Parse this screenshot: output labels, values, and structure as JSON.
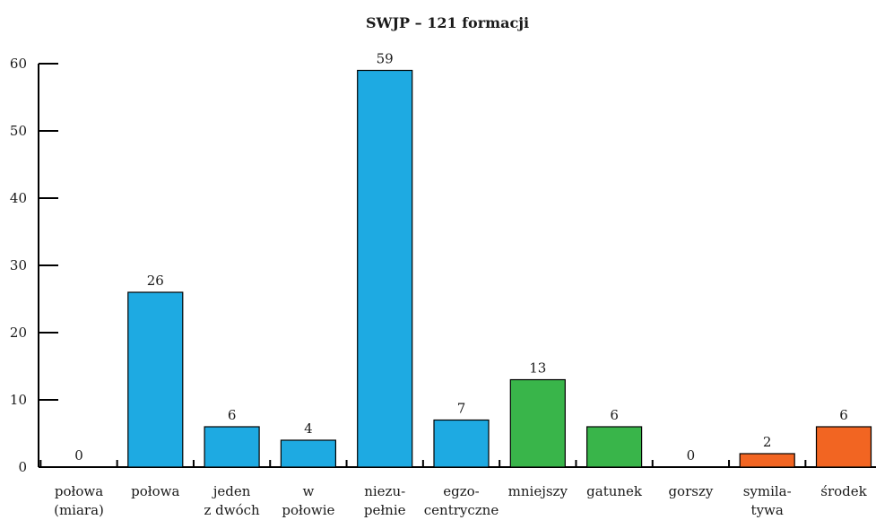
{
  "chart_data": {
    "type": "bar",
    "title": "SWJP – 121 formacji",
    "xlabel": "",
    "ylabel": "",
    "ylim": [
      0,
      60
    ],
    "yticks": [
      0,
      10,
      20,
      30,
      40,
      50,
      60
    ],
    "grid": false,
    "categories": [
      [
        "połowa",
        "(miara)"
      ],
      [
        "połowa"
      ],
      [
        "jeden",
        "z dwóch"
      ],
      [
        "w",
        "połowie"
      ],
      [
        "niezu-",
        "pełnie"
      ],
      [
        "egzo-",
        "centryczne"
      ],
      [
        "mniejszy"
      ],
      [
        "gatunek"
      ],
      [
        "gorszy"
      ],
      [
        "symila-",
        "tywa"
      ],
      [
        "środek"
      ]
    ],
    "values": [
      0,
      26,
      6,
      4,
      59,
      7,
      13,
      6,
      0,
      2,
      6
    ],
    "colors": [
      "#1eaae2",
      "#1eaae2",
      "#1eaae2",
      "#1eaae2",
      "#1eaae2",
      "#1eaae2",
      "#39b54a",
      "#39b54a",
      "#39b54a",
      "#f26522",
      "#f26522"
    ]
  }
}
